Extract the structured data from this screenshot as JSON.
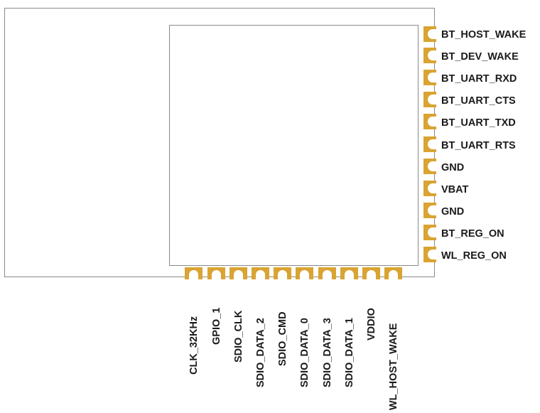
{
  "colors": {
    "pad": "#d9a432",
    "outline": "#8a8a8a",
    "text": "#1a1a1a"
  },
  "right_pins": [
    {
      "label": "BT_HOST_WAKE"
    },
    {
      "label": "BT_DEV_WAKE"
    },
    {
      "label": "BT_UART_RXD"
    },
    {
      "label": "BT_UART_CTS"
    },
    {
      "label": "BT_UART_TXD"
    },
    {
      "label": "BT_UART_RTS"
    },
    {
      "label": "GND"
    },
    {
      "label": "VBAT"
    },
    {
      "label": "GND"
    },
    {
      "label": "BT_REG_ON"
    },
    {
      "label": "WL_REG_ON"
    }
  ],
  "bottom_pins": [
    {
      "label": "CLK_32KHz"
    },
    {
      "label": "GPIO_1"
    },
    {
      "label": "SDIO_CLK"
    },
    {
      "label": "SDIO_DATA_2"
    },
    {
      "label": "SDIO_CMD"
    },
    {
      "label": "SDIO_DATA_0"
    },
    {
      "label": "SDIO_DATA_3"
    },
    {
      "label": "SDIO_DATA_1"
    },
    {
      "label": "VDDIO"
    },
    {
      "label": "WL_HOST_WAKE"
    }
  ]
}
